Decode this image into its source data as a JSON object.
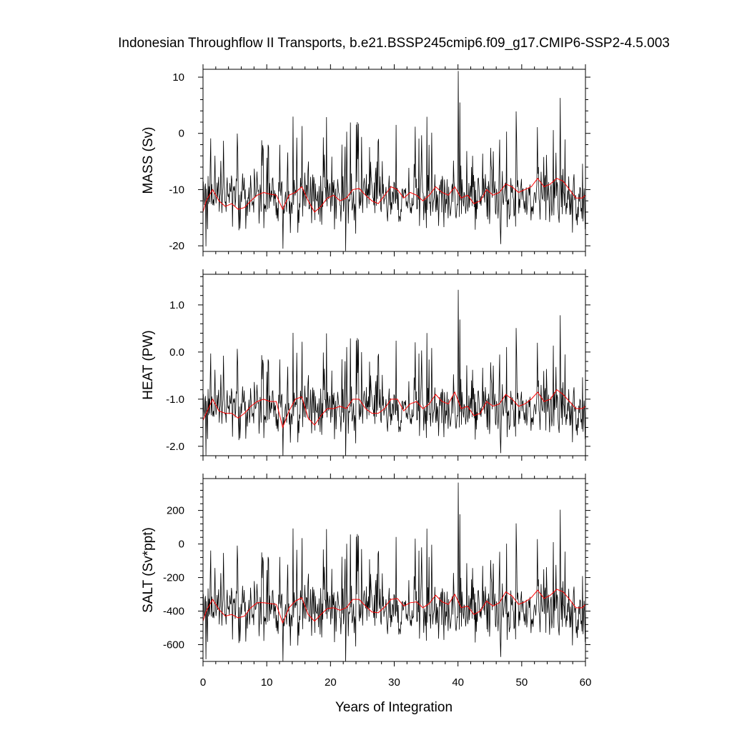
{
  "chart_data": {
    "type": "line",
    "title": "Indonesian Throughflow II Transports, b.e21.BSSP245cmip6.f09_g17.CMIP6-SSP2-4.5.003",
    "xlabel": "Years of Integration",
    "xlim": [
      0,
      60
    ],
    "xticks": [
      0,
      10,
      20,
      30,
      40,
      50,
      60
    ],
    "xtick_labels": [
      "0",
      "10",
      "20",
      "30",
      "40",
      "50",
      "60"
    ],
    "grid": false,
    "legend": "none",
    "panels": [
      {
        "id": "mass",
        "ylabel": "MASS (Sv)",
        "ylim": [
          -21,
          11.4
        ],
        "yticks": [
          10,
          0,
          -10,
          -20
        ],
        "ytick_labels": [
          "10",
          "0",
          "-10",
          "-20"
        ],
        "monthly_base": -11.3,
        "monthly_scale": 4,
        "smoothed_x": [
          0,
          0.5,
          1.5,
          2.5,
          3.5,
          4.5,
          5.5,
          6.5,
          7.5,
          8.5,
          9.5,
          10.5,
          11.5,
          12.5,
          13.5,
          14.5,
          15.5,
          16.5,
          17.5,
          18.5,
          19.5,
          20.5,
          21.5,
          22.5,
          23.5,
          24.5,
          25.5,
          26.5,
          27.5,
          28.5,
          29.5,
          30.5,
          31.5,
          32.5,
          33.5,
          34.5,
          35.5,
          36.5,
          37.5,
          38.5,
          39.5,
          40.5,
          41.5,
          42.5,
          43.5,
          44.5,
          45.5,
          46.5,
          47.5,
          48.5,
          49.5,
          50.5,
          51.5,
          52.5,
          53.5,
          54.5,
          55.5,
          56.5,
          57.5,
          58.5,
          59.5,
          60
        ],
        "smoothed_y": [
          -14.0,
          -12.0,
          -10.0,
          -12.0,
          -13.0,
          -12.5,
          -13.5,
          -13.2,
          -12.0,
          -11.0,
          -10.5,
          -10.8,
          -11.0,
          -13.5,
          -11.0,
          -10.5,
          -9.5,
          -12.0,
          -14.0,
          -13.0,
          -11.5,
          -11.0,
          -12.0,
          -11.5,
          -10.0,
          -9.8,
          -11.0,
          -12.0,
          -12.5,
          -11.0,
          -9.5,
          -10.0,
          -11.5,
          -10.5,
          -11.0,
          -12.0,
          -11.0,
          -9.5,
          -10.5,
          -11.0,
          -9.5,
          -11.5,
          -11.0,
          -12.5,
          -12.0,
          -10.0,
          -11.0,
          -10.5,
          -9.0,
          -9.5,
          -10.5,
          -10.0,
          -9.5,
          -8.0,
          -9.5,
          -9.0,
          -8.0,
          -8.5,
          -10.0,
          -11.5,
          -11.5,
          -11.0
        ]
      },
      {
        "id": "heat",
        "ylabel": "HEAT (PW)",
        "ylim": [
          -2.2,
          1.65
        ],
        "yticks": [
          1.0,
          0.0,
          -1.0,
          -2.0
        ],
        "ytick_labels": [
          "1.0",
          "0.0",
          "-1.0",
          "-2.0"
        ],
        "monthly_base": -1.2,
        "monthly_scale": 0.45,
        "smoothed_x": [
          0,
          0.5,
          1.5,
          2.5,
          3.5,
          4.5,
          5.5,
          6.5,
          7.5,
          8.5,
          9.5,
          10.5,
          11.5,
          12.5,
          13.5,
          14.5,
          15.5,
          16.5,
          17.5,
          18.5,
          19.5,
          20.5,
          21.5,
          22.5,
          23.5,
          24.5,
          25.5,
          26.5,
          27.5,
          28.5,
          29.5,
          30.5,
          31.5,
          32.5,
          33.5,
          34.5,
          35.5,
          36.5,
          37.5,
          38.5,
          39.5,
          40.5,
          41.5,
          42.5,
          43.5,
          44.5,
          45.5,
          46.5,
          47.5,
          48.5,
          49.5,
          50.5,
          51.5,
          52.5,
          53.5,
          54.5,
          55.5,
          56.5,
          57.5,
          58.5,
          59.5,
          60
        ],
        "smoothed_y": [
          -1.45,
          -1.3,
          -1.0,
          -1.25,
          -1.3,
          -1.3,
          -1.4,
          -1.3,
          -1.15,
          -1.05,
          -1.0,
          -1.05,
          -1.05,
          -1.6,
          -1.25,
          -1.0,
          -0.95,
          -1.4,
          -1.55,
          -1.35,
          -1.2,
          -1.2,
          -1.15,
          -1.2,
          -1.0,
          -1.0,
          -1.2,
          -1.3,
          -1.3,
          -1.2,
          -1.0,
          -1.0,
          -1.25,
          -1.1,
          -1.05,
          -1.2,
          -1.1,
          -0.9,
          -1.05,
          -1.1,
          -0.85,
          -1.2,
          -1.15,
          -1.35,
          -1.3,
          -1.05,
          -1.15,
          -1.1,
          -0.9,
          -1.0,
          -1.15,
          -1.1,
          -1.0,
          -0.85,
          -1.05,
          -1.0,
          -0.8,
          -0.9,
          -1.05,
          -1.2,
          -1.2,
          -1.15
        ]
      },
      {
        "id": "salt",
        "ylabel": "SALT (Sv*ppt)",
        "ylim": [
          -700,
          390
        ],
        "yticks": [
          200,
          0,
          -200,
          -400,
          -600
        ],
        "ytick_labels": [
          "200",
          "0",
          "-200",
          "-400",
          "-600"
        ],
        "monthly_base": -390,
        "monthly_scale": 135,
        "smoothed_x": [
          0,
          0.5,
          1.5,
          2.5,
          3.5,
          4.5,
          5.5,
          6.5,
          7.5,
          8.5,
          9.5,
          10.5,
          11.5,
          12.5,
          13.5,
          14.5,
          15.5,
          16.5,
          17.5,
          18.5,
          19.5,
          20.5,
          21.5,
          22.5,
          23.5,
          24.5,
          25.5,
          26.5,
          27.5,
          28.5,
          29.5,
          30.5,
          31.5,
          32.5,
          33.5,
          34.5,
          35.5,
          36.5,
          37.5,
          38.5,
          39.5,
          40.5,
          41.5,
          42.5,
          43.5,
          44.5,
          45.5,
          46.5,
          47.5,
          48.5,
          49.5,
          50.5,
          51.5,
          52.5,
          53.5,
          54.5,
          55.5,
          56.5,
          57.5,
          58.5,
          59.5,
          60
        ],
        "smoothed_y": [
          -460,
          -400,
          -330,
          -390,
          -430,
          -420,
          -440,
          -430,
          -380,
          -350,
          -350,
          -355,
          -360,
          -470,
          -380,
          -340,
          -320,
          -420,
          -460,
          -420,
          -385,
          -380,
          -395,
          -380,
          -330,
          -330,
          -370,
          -405,
          -410,
          -375,
          -330,
          -325,
          -370,
          -350,
          -345,
          -380,
          -355,
          -305,
          -345,
          -360,
          -300,
          -380,
          -370,
          -420,
          -400,
          -340,
          -370,
          -350,
          -285,
          -310,
          -360,
          -345,
          -320,
          -275,
          -325,
          -305,
          -270,
          -285,
          -330,
          -380,
          -380,
          -360
        ]
      }
    ],
    "series": [
      {
        "kind": "monthly",
        "color": "#000000"
      },
      {
        "kind": "smoothed",
        "color": "#ff0000"
      }
    ]
  }
}
